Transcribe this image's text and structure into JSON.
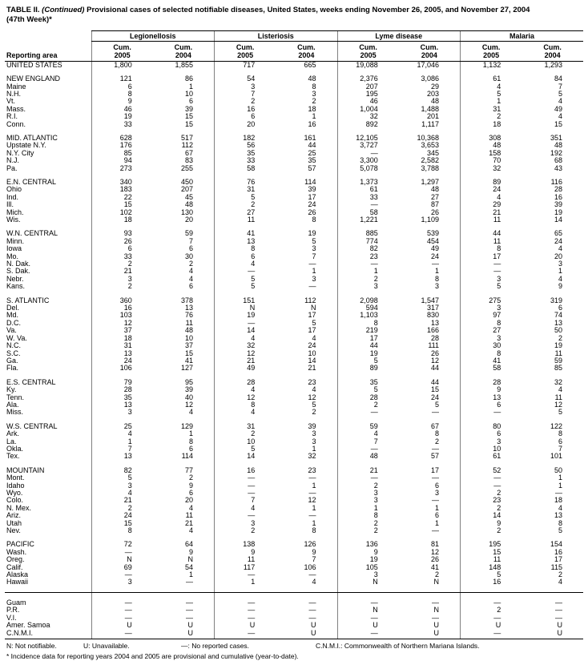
{
  "title": {
    "prefix": "TABLE II.",
    "continued": "(Continued)",
    "text": "Provisional cases of selected notifiable diseases, United States, weeks ending November 26, 2005, and November 27, 2004",
    "week": "(47th Week)*"
  },
  "table": {
    "area_header": "Reporting area",
    "groups": [
      "Legionellosis",
      "Listeriosis",
      "Lyme disease",
      "Malaria"
    ],
    "sub_top": "Cum.",
    "years": [
      "2005",
      "2004"
    ],
    "sections": [
      {
        "rows": [
          [
            "UNITED STATES",
            "1,800",
            "1,855",
            "717",
            "665",
            "19,088",
            "17,046",
            "1,132",
            "1,293"
          ]
        ]
      },
      {
        "rows": [
          [
            "NEW ENGLAND",
            "121",
            "86",
            "54",
            "48",
            "2,376",
            "3,086",
            "61",
            "84"
          ],
          [
            "Maine",
            "6",
            "1",
            "3",
            "8",
            "207",
            "29",
            "4",
            "7"
          ],
          [
            "N.H.",
            "8",
            "10",
            "7",
            "3",
            "195",
            "203",
            "5",
            "5"
          ],
          [
            "Vt.",
            "9",
            "6",
            "2",
            "2",
            "46",
            "48",
            "1",
            "4"
          ],
          [
            "Mass.",
            "46",
            "39",
            "16",
            "18",
            "1,004",
            "1,488",
            "31",
            "49"
          ],
          [
            "R.I.",
            "19",
            "15",
            "6",
            "1",
            "32",
            "201",
            "2",
            "4"
          ],
          [
            "Conn.",
            "33",
            "15",
            "20",
            "16",
            "892",
            "1,117",
            "18",
            "15"
          ]
        ]
      },
      {
        "rows": [
          [
            "MID. ATLANTIC",
            "628",
            "517",
            "182",
            "161",
            "12,105",
            "10,368",
            "308",
            "351"
          ],
          [
            "Upstate N.Y.",
            "176",
            "112",
            "56",
            "44",
            "3,727",
            "3,653",
            "48",
            "48"
          ],
          [
            "N.Y. City",
            "85",
            "67",
            "35",
            "25",
            "—",
            "345",
            "158",
            "192"
          ],
          [
            "N.J.",
            "94",
            "83",
            "33",
            "35",
            "3,300",
            "2,582",
            "70",
            "68"
          ],
          [
            "Pa.",
            "273",
            "255",
            "58",
            "57",
            "5,078",
            "3,788",
            "32",
            "43"
          ]
        ]
      },
      {
        "rows": [
          [
            "E.N. CENTRAL",
            "340",
            "450",
            "76",
            "114",
            "1,373",
            "1,297",
            "89",
            "116"
          ],
          [
            "Ohio",
            "183",
            "207",
            "31",
            "39",
            "61",
            "48",
            "24",
            "28"
          ],
          [
            "Ind.",
            "22",
            "45",
            "5",
            "17",
            "33",
            "27",
            "4",
            "16"
          ],
          [
            "Ill.",
            "15",
            "48",
            "2",
            "24",
            "—",
            "87",
            "29",
            "39"
          ],
          [
            "Mich.",
            "102",
            "130",
            "27",
            "26",
            "58",
            "26",
            "21",
            "19"
          ],
          [
            "Wis.",
            "18",
            "20",
            "11",
            "8",
            "1,221",
            "1,109",
            "11",
            "14"
          ]
        ]
      },
      {
        "rows": [
          [
            "W.N. CENTRAL",
            "93",
            "59",
            "41",
            "19",
            "885",
            "539",
            "44",
            "65"
          ],
          [
            "Minn.",
            "26",
            "7",
            "13",
            "5",
            "774",
            "454",
            "11",
            "24"
          ],
          [
            "Iowa",
            "6",
            "6",
            "8",
            "3",
            "82",
            "49",
            "8",
            "4"
          ],
          [
            "Mo.",
            "33",
            "30",
            "6",
            "7",
            "23",
            "24",
            "17",
            "20"
          ],
          [
            "N. Dak.",
            "2",
            "2",
            "4",
            "—",
            "—",
            "—",
            "—",
            "3"
          ],
          [
            "S. Dak.",
            "21",
            "4",
            "—",
            "1",
            "1",
            "1",
            "—",
            "1"
          ],
          [
            "Nebr.",
            "3",
            "4",
            "5",
            "3",
            "2",
            "8",
            "3",
            "4"
          ],
          [
            "Kans.",
            "2",
            "6",
            "5",
            "—",
            "3",
            "3",
            "5",
            "9"
          ]
        ]
      },
      {
        "rows": [
          [
            "S. ATLANTIC",
            "360",
            "378",
            "151",
            "112",
            "2,098",
            "1,547",
            "275",
            "319"
          ],
          [
            "Del.",
            "16",
            "13",
            "N",
            "N",
            "594",
            "317",
            "3",
            "6"
          ],
          [
            "Md.",
            "103",
            "76",
            "19",
            "17",
            "1,103",
            "830",
            "97",
            "74"
          ],
          [
            "D.C.",
            "12",
            "11",
            "—",
            "5",
            "8",
            "13",
            "8",
            "13"
          ],
          [
            "Va.",
            "37",
            "48",
            "14",
            "17",
            "219",
            "166",
            "27",
            "50"
          ],
          [
            "W. Va.",
            "18",
            "10",
            "4",
            "4",
            "17",
            "28",
            "3",
            "2"
          ],
          [
            "N.C.",
            "31",
            "37",
            "32",
            "24",
            "44",
            "111",
            "30",
            "19"
          ],
          [
            "S.C.",
            "13",
            "15",
            "12",
            "10",
            "19",
            "26",
            "8",
            "11"
          ],
          [
            "Ga.",
            "24",
            "41",
            "21",
            "14",
            "5",
            "12",
            "41",
            "59"
          ],
          [
            "Fla.",
            "106",
            "127",
            "49",
            "21",
            "89",
            "44",
            "58",
            "85"
          ]
        ]
      },
      {
        "rows": [
          [
            "E.S. CENTRAL",
            "79",
            "95",
            "28",
            "23",
            "35",
            "44",
            "28",
            "32"
          ],
          [
            "Ky.",
            "28",
            "39",
            "4",
            "4",
            "5",
            "15",
            "9",
            "4"
          ],
          [
            "Tenn.",
            "35",
            "40",
            "12",
            "12",
            "28",
            "24",
            "13",
            "11"
          ],
          [
            "Ala.",
            "13",
            "12",
            "8",
            "5",
            "2",
            "5",
            "6",
            "12"
          ],
          [
            "Miss.",
            "3",
            "4",
            "4",
            "2",
            "—",
            "—",
            "—",
            "5"
          ]
        ]
      },
      {
        "rows": [
          [
            "W.S. CENTRAL",
            "25",
            "129",
            "31",
            "39",
            "59",
            "67",
            "80",
            "122"
          ],
          [
            "Ark.",
            "4",
            "1",
            "2",
            "3",
            "4",
            "8",
            "6",
            "8"
          ],
          [
            "La.",
            "1",
            "8",
            "10",
            "3",
            "7",
            "2",
            "3",
            "6"
          ],
          [
            "Okla.",
            "7",
            "6",
            "5",
            "1",
            "—",
            "—",
            "10",
            "7"
          ],
          [
            "Tex.",
            "13",
            "114",
            "14",
            "32",
            "48",
            "57",
            "61",
            "101"
          ]
        ]
      },
      {
        "rows": [
          [
            "MOUNTAIN",
            "82",
            "77",
            "16",
            "23",
            "21",
            "17",
            "52",
            "50"
          ],
          [
            "Mont.",
            "5",
            "2",
            "—",
            "—",
            "—",
            "—",
            "—",
            "1"
          ],
          [
            "Idaho",
            "3",
            "9",
            "—",
            "1",
            "2",
            "6",
            "—",
            "1"
          ],
          [
            "Wyo.",
            "4",
            "6",
            "—",
            "—",
            "3",
            "3",
            "2",
            "—"
          ],
          [
            "Colo.",
            "21",
            "20",
            "7",
            "12",
            "3",
            "—",
            "23",
            "18"
          ],
          [
            "N. Mex.",
            "2",
            "4",
            "4",
            "1",
            "1",
            "1",
            "2",
            "4"
          ],
          [
            "Ariz.",
            "24",
            "11",
            "—",
            "—",
            "8",
            "6",
            "14",
            "13"
          ],
          [
            "Utah",
            "15",
            "21",
            "3",
            "1",
            "2",
            "1",
            "9",
            "8"
          ],
          [
            "Nev.",
            "8",
            "4",
            "2",
            "8",
            "2",
            "—",
            "2",
            "5"
          ]
        ]
      },
      {
        "rows": [
          [
            "PACIFIC",
            "72",
            "64",
            "138",
            "126",
            "136",
            "81",
            "195",
            "154"
          ],
          [
            "Wash.",
            "—",
            "9",
            "9",
            "9",
            "9",
            "12",
            "15",
            "16"
          ],
          [
            "Oreg.",
            "N",
            "N",
            "11",
            "7",
            "19",
            "26",
            "11",
            "17"
          ],
          [
            "Calif.",
            "69",
            "54",
            "117",
            "106",
            "105",
            "41",
            "148",
            "115"
          ],
          [
            "Alaska",
            "—",
            "1",
            "—",
            "—",
            "3",
            "2",
            "5",
            "2"
          ],
          [
            "Hawaii",
            "3",
            "—",
            "1",
            "4",
            "N",
            "N",
            "16",
            "4"
          ]
        ]
      },
      {
        "rule_before": true,
        "rows": [
          [
            "Guam",
            "—",
            "—",
            "—",
            "—",
            "—",
            "—",
            "—",
            "—"
          ],
          [
            "P.R.",
            "—",
            "—",
            "—",
            "—",
            "N",
            "N",
            "2",
            "—"
          ],
          [
            "V.I.",
            "—",
            "—",
            "—",
            "—",
            "—",
            "—",
            "—",
            "—"
          ],
          [
            "Amer. Samoa",
            "U",
            "U",
            "U",
            "U",
            "U",
            "U",
            "U",
            "U"
          ],
          [
            "C.N.M.I.",
            "—",
            "U",
            "—",
            "U",
            "—",
            "U",
            "—",
            "U"
          ]
        ]
      }
    ]
  },
  "footnotes": {
    "items": [
      "N: Not notifiable.",
      "U: Unavailable.",
      "—: No reported cases.",
      "C.N.M.I.: Commonwealth of Northern Mariana Islands."
    ],
    "asterisk": "* Incidence data for reporting years 2004 and 2005 are provisional and cumulative (year-to-date)."
  }
}
